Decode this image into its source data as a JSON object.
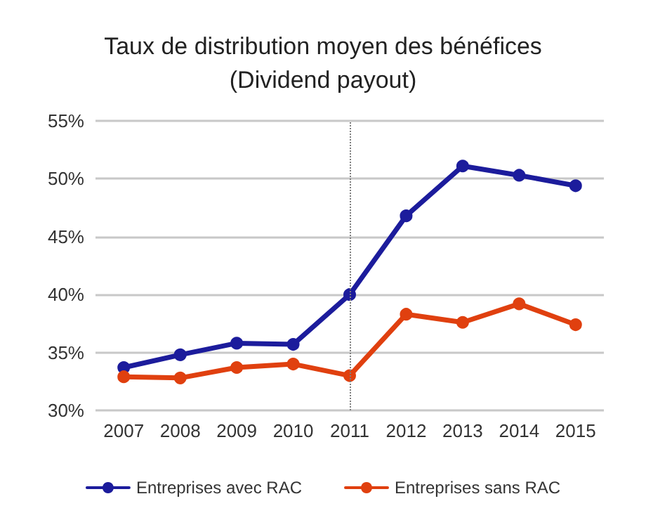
{
  "chart_data": {
    "type": "line",
    "title": "Taux de distribution moyen des bénéfices\n(Dividend payout)",
    "categories": [
      "2007",
      "2008",
      "2009",
      "2010",
      "2011",
      "2012",
      "2013",
      "2014",
      "2015"
    ],
    "series": [
      {
        "name": "Entreprises avec RAC",
        "color": "#1c1c9c",
        "values": [
          33.7,
          34.8,
          35.8,
          35.7,
          40.0,
          46.8,
          51.1,
          50.3,
          49.4
        ]
      },
      {
        "name": "Entreprises sans RAC",
        "color": "#e0400f",
        "values": [
          32.9,
          32.8,
          33.7,
          34.0,
          33.0,
          38.3,
          37.6,
          39.2,
          37.4
        ]
      }
    ],
    "ylim": [
      30,
      55
    ],
    "yticks": [
      {
        "value": 30,
        "label": "30%"
      },
      {
        "value": 35,
        "label": "35%"
      },
      {
        "value": 40,
        "label": "40%"
      },
      {
        "value": 45,
        "label": "45%"
      },
      {
        "value": 50,
        "label": "50%"
      },
      {
        "value": 55,
        "label": "55%"
      }
    ],
    "ref_lines": [
      {
        "axis": "x",
        "value": "2011",
        "color": "#7f7f7f",
        "line_style": "dotted"
      }
    ],
    "grid": "y",
    "legend": "bottom",
    "marker": "circle",
    "line_style": "solid"
  }
}
